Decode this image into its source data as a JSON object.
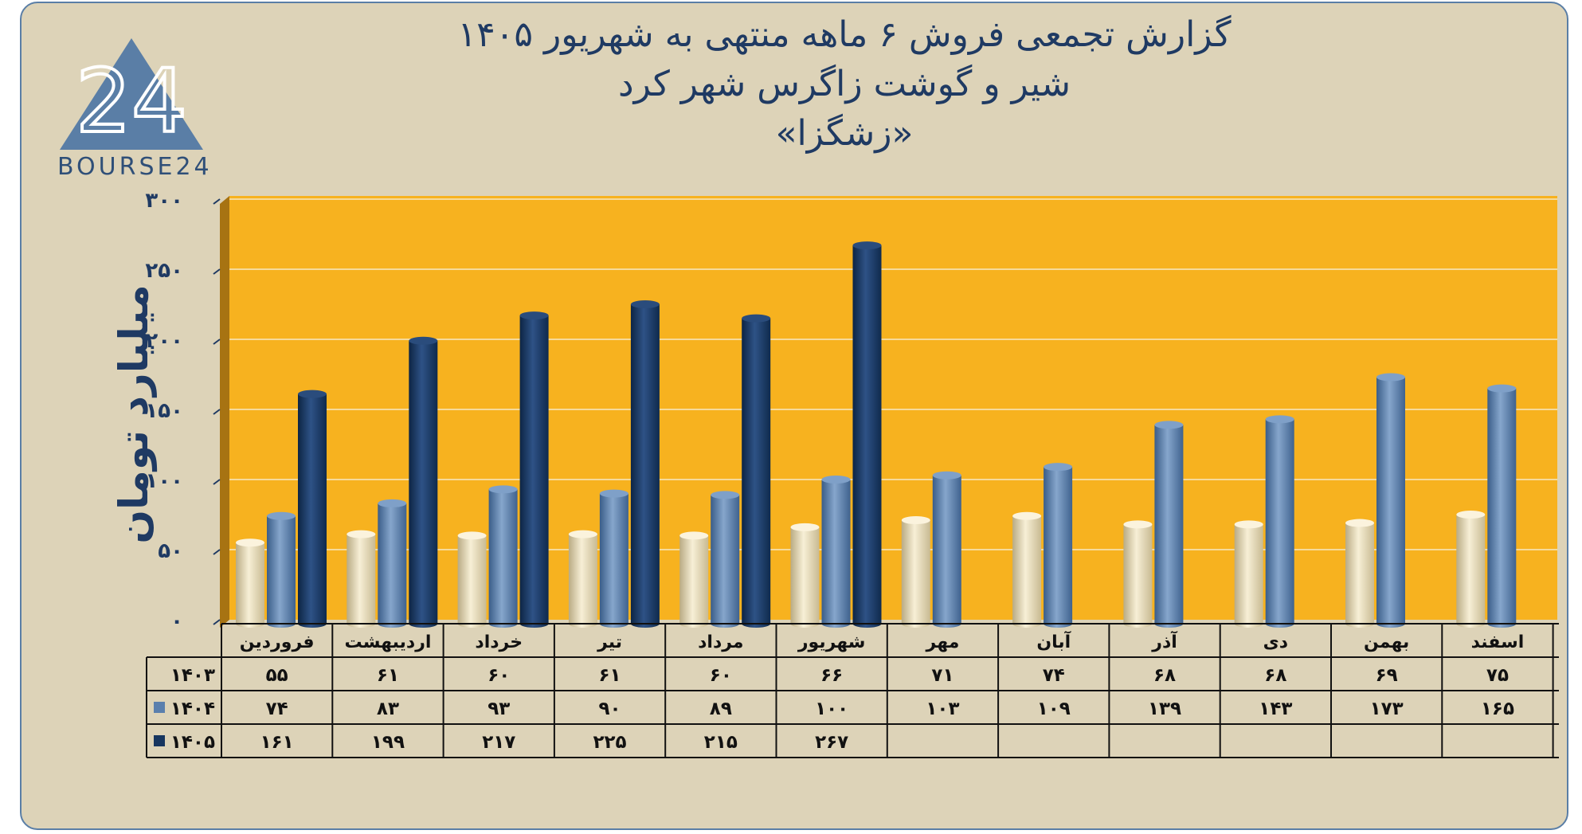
{
  "title": {
    "line1": "گزارش تجمعی فروش ۶ ماهه منتهی به شهریور ۱۴۰۵",
    "line2": "شیر و گوشت زاگرس شهر کرد",
    "line3": "«زشگزا»"
  },
  "logo": {
    "text": "BOURSE24",
    "numerals": "24"
  },
  "colors": {
    "background": "#ddd3b8",
    "plot_area": "#f7b21f",
    "series_1403": "#ece0c0",
    "series_1404": "#5a7fad",
    "series_1405": "#17365f",
    "text": "#1f3a63"
  },
  "chart_data": {
    "type": "bar",
    "ylabel": "میلیارد تومان",
    "ylim": [
      0,
      300
    ],
    "yticks": [
      "۰",
      "۵۰",
      "۱۰۰",
      "۱۵۰",
      "۲۰۰",
      "۲۵۰",
      "۳۰۰"
    ],
    "ytick_values": [
      0,
      50,
      100,
      150,
      200,
      250,
      300
    ],
    "grid": true,
    "legend_placement": "in data table, left",
    "categories": [
      "فروردین",
      "اردیبهشت",
      "خرداد",
      "تیر",
      "مرداد",
      "شهریور",
      "مهر",
      "آبان",
      "آذر",
      "دی",
      "بهمن",
      "اسفند"
    ],
    "series": [
      {
        "name": "۱۴۰۳",
        "values": [
          55,
          61,
          60,
          61,
          60,
          66,
          71,
          74,
          68,
          68,
          69,
          75
        ],
        "labels": [
          "۵۵",
          "۶۱",
          "۶۰",
          "۶۱",
          "۶۰",
          "۶۶",
          "۷۱",
          "۷۴",
          "۶۸",
          "۶۸",
          "۶۹",
          "۷۵"
        ]
      },
      {
        "name": "۱۴۰۴",
        "values": [
          74,
          83,
          93,
          90,
          89,
          100,
          103,
          109,
          139,
          143,
          173,
          165
        ],
        "labels": [
          "۷۴",
          "۸۳",
          "۹۳",
          "۹۰",
          "۸۹",
          "۱۰۰",
          "۱۰۳",
          "۱۰۹",
          "۱۳۹",
          "۱۴۳",
          "۱۷۳",
          "۱۶۵"
        ]
      },
      {
        "name": "۱۴۰۵",
        "values": [
          161,
          199,
          217,
          225,
          215,
          267,
          null,
          null,
          null,
          null,
          null,
          null
        ],
        "labels": [
          "۱۶۱",
          "۱۹۹",
          "۲۱۷",
          "۲۲۵",
          "۲۱۵",
          "۲۶۷",
          "",
          "",
          "",
          "",
          "",
          ""
        ]
      }
    ]
  }
}
